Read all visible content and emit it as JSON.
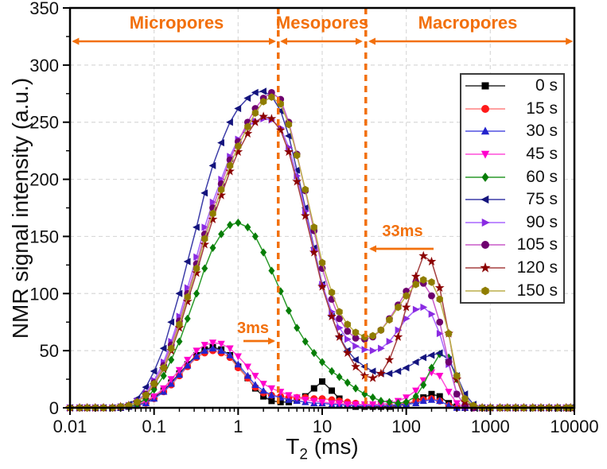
{
  "figure": {
    "y_axis_title": "NMR signal intensity (a.u.)",
    "x_axis_title_base": "T",
    "x_axis_title_sub": "2",
    "x_axis_title_unit": "(ms)"
  },
  "colors": {
    "accent_orange": "#F2700D",
    "axis_black": "#000000",
    "gridline_gray": "#D9D9D9",
    "background": "#FFFFFF"
  },
  "chart_data": {
    "type": "line",
    "title": "",
    "xlabel": "T2 (ms)",
    "ylabel": "NMR signal intensity (a.u.)",
    "xscale": "log",
    "xlim": [
      0.01,
      10000
    ],
    "ylim": [
      0,
      350
    ],
    "x_tick_labels": [
      "0.01",
      "0.1",
      "1",
      "10",
      "100",
      "1000",
      "10000"
    ],
    "y_ticks": [
      0,
      50,
      100,
      150,
      200,
      250,
      300,
      350
    ],
    "y_minor_step": 25,
    "grid": true,
    "legend_position": "upper right",
    "cutoff_lines_ms": [
      3,
      33
    ],
    "annotations": [
      {
        "text": "3ms",
        "t2_ms": 3,
        "arrow_direction": "right"
      },
      {
        "text": "33ms",
        "t2_ms": 33,
        "arrow_direction": "left"
      }
    ],
    "regions": [
      {
        "label": "Micropores",
        "from_ms": 0.011,
        "to_ms": 2.7
      },
      {
        "label": "Mesopores",
        "from_ms": 3.3,
        "to_ms": 29
      },
      {
        "label": "Macropores",
        "from_ms": 37,
        "to_ms": 9200
      }
    ],
    "x": [
      0.01,
      0.013,
      0.016,
      0.02,
      0.025,
      0.032,
      0.04,
      0.05,
      0.063,
      0.08,
      0.1,
      0.13,
      0.16,
      0.2,
      0.25,
      0.32,
      0.4,
      0.5,
      0.63,
      0.8,
      1,
      1.3,
      1.6,
      2,
      2.5,
      3.2,
      4,
      5,
      6.3,
      8,
      10,
      13,
      16,
      20,
      25,
      32,
      40,
      50,
      63,
      80,
      100,
      130,
      160,
      200,
      250,
      320,
      400,
      500,
      630,
      800,
      1000,
      1300,
      1600,
      2000,
      2500,
      3200,
      4000,
      5000,
      6300,
      8000,
      9000
    ],
    "series": [
      {
        "name": "0 s",
        "marker": "square",
        "color": "#000000",
        "line_color": "#2B2B2B",
        "values": [
          0,
          0,
          0,
          0,
          0,
          0,
          0,
          1,
          2,
          5,
          9,
          15,
          22,
          30,
          38,
          46,
          51,
          53,
          51,
          46,
          36,
          26,
          17,
          10,
          6,
          5,
          5,
          7,
          10,
          17,
          23,
          15,
          8,
          3,
          1,
          1,
          1,
          1,
          1,
          2,
          3,
          6,
          9,
          12,
          10,
          4,
          1,
          0,
          0,
          0,
          0,
          0,
          0,
          0,
          0,
          0,
          0,
          0,
          0,
          0,
          0
        ]
      },
      {
        "name": "15 s",
        "marker": "circle",
        "color": "#FF1A1A",
        "line_color": "#FF8080",
        "values": [
          0,
          0,
          0,
          0,
          0,
          0,
          0,
          1,
          2,
          4,
          8,
          14,
          20,
          28,
          36,
          44,
          48,
          50,
          48,
          44,
          35,
          26,
          18,
          13,
          11,
          10,
          9,
          9,
          9,
          8,
          8,
          7,
          6,
          5,
          4,
          2,
          2,
          2,
          2,
          3,
          4,
          6,
          7,
          8,
          6,
          2,
          0,
          0,
          0,
          0,
          0,
          0,
          0,
          0,
          0,
          0,
          0,
          0,
          0,
          0,
          0
        ]
      },
      {
        "name": "30 s",
        "marker": "triangle-up",
        "color": "#2424CC",
        "line_color": "#5050E0",
        "values": [
          0,
          0,
          0,
          0,
          0,
          0,
          0,
          1,
          2,
          4,
          8,
          14,
          21,
          29,
          37,
          45,
          50,
          52,
          50,
          46,
          38,
          28,
          20,
          15,
          11,
          9,
          7,
          6,
          5,
          4,
          4,
          3,
          3,
          2,
          2,
          2,
          2,
          2,
          2,
          3,
          3,
          4,
          6,
          7,
          6,
          2,
          0,
          0,
          0,
          0,
          0,
          0,
          0,
          0,
          0,
          0,
          0,
          0,
          0,
          0,
          0
        ]
      },
      {
        "name": "45 s",
        "marker": "triangle-down",
        "color": "#FF00CC",
        "line_color": "#FF4DD8",
        "values": [
          0,
          0,
          0,
          0,
          0,
          0,
          0,
          1,
          3,
          6,
          10,
          17,
          25,
          33,
          42,
          50,
          55,
          57,
          56,
          52,
          45,
          36,
          28,
          21,
          17,
          14,
          11,
          9,
          7,
          6,
          5,
          4,
          4,
          3,
          3,
          3,
          3,
          3,
          4,
          6,
          9,
          15,
          24,
          31,
          28,
          14,
          4,
          0,
          0,
          0,
          0,
          0,
          0,
          0,
          0,
          0,
          0,
          0,
          0,
          0,
          0
        ]
      },
      {
        "name": "60 s",
        "marker": "diamond",
        "color": "#077D07",
        "line_color": "#2A9A2A",
        "values": [
          0,
          0,
          0,
          0,
          0,
          0,
          0,
          1,
          3,
          8,
          16,
          28,
          42,
          58,
          78,
          100,
          122,
          140,
          152,
          160,
          162,
          158,
          150,
          136,
          120,
          102,
          85,
          70,
          58,
          48,
          40,
          32,
          27,
          22,
          17,
          12,
          9,
          6,
          5,
          4,
          5,
          10,
          20,
          35,
          47,
          44,
          25,
          8,
          1,
          0,
          0,
          0,
          0,
          0,
          0,
          0,
          0,
          0,
          0,
          0,
          0
        ]
      },
      {
        "name": "75 s",
        "marker": "triangle-left",
        "color": "#14147D",
        "line_color": "#3C3CA8",
        "values": [
          0,
          0,
          0,
          0,
          0,
          0,
          1,
          3,
          8,
          18,
          32,
          52,
          75,
          100,
          128,
          158,
          188,
          212,
          232,
          250,
          262,
          271,
          276,
          277,
          273,
          260,
          238,
          208,
          175,
          140,
          108,
          80,
          62,
          50,
          42,
          36,
          32,
          30,
          30,
          32,
          35,
          40,
          44,
          46,
          48,
          42,
          28,
          12,
          3,
          0,
          0,
          0,
          0,
          0,
          0,
          0,
          0,
          0,
          0,
          0,
          0
        ]
      },
      {
        "name": "90 s",
        "marker": "triangle-right",
        "color": "#8A2BE2",
        "line_color": "#A866FF",
        "values": [
          0,
          0,
          0,
          0,
          0,
          0,
          1,
          2,
          6,
          13,
          24,
          40,
          58,
          80,
          105,
          132,
          158,
          180,
          200,
          220,
          235,
          246,
          251,
          253,
          252,
          245,
          228,
          203,
          172,
          138,
          108,
          84,
          70,
          60,
          54,
          51,
          50,
          52,
          58,
          68,
          78,
          86,
          88,
          82,
          65,
          38,
          12,
          2,
          0,
          0,
          0,
          0,
          0,
          0,
          0,
          0,
          0,
          0,
          0,
          0,
          0
        ]
      },
      {
        "name": "105 s",
        "marker": "circle",
        "color": "#6E006E",
        "line_color": "#C85AC8",
        "values": [
          0,
          0,
          0,
          0,
          0,
          0,
          1,
          2,
          5,
          12,
          22,
          37,
          55,
          76,
          100,
          126,
          152,
          175,
          196,
          217,
          233,
          250,
          262,
          271,
          276,
          270,
          250,
          222,
          190,
          155,
          122,
          95,
          78,
          67,
          61,
          60,
          62,
          68,
          78,
          90,
          102,
          110,
          109,
          98,
          75,
          40,
          12,
          2,
          0,
          0,
          0,
          0,
          0,
          0,
          0,
          0,
          0,
          0,
          0,
          0,
          0
        ]
      },
      {
        "name": "120 s",
        "marker": "star",
        "color": "#8B0000",
        "line_color": "#A54040",
        "values": [
          0,
          0,
          0,
          0,
          0,
          0,
          1,
          2,
          5,
          11,
          20,
          34,
          50,
          70,
          93,
          118,
          143,
          165,
          186,
          207,
          224,
          240,
          250,
          255,
          253,
          243,
          224,
          198,
          168,
          136,
          106,
          80,
          62,
          48,
          36,
          28,
          26,
          30,
          42,
          62,
          88,
          115,
          133,
          128,
          105,
          65,
          25,
          5,
          1,
          0,
          0,
          0,
          0,
          0,
          0,
          0,
          0,
          0,
          0,
          0,
          0
        ]
      },
      {
        "name": "150 s",
        "marker": "hexagon",
        "color": "#8F7D00",
        "line_color": "#BCAE4A",
        "values": [
          0,
          0,
          0,
          0,
          0,
          0,
          1,
          2,
          5,
          11,
          21,
          35,
          52,
          73,
          97,
          122,
          148,
          170,
          191,
          212,
          229,
          246,
          258,
          268,
          272,
          266,
          248,
          221,
          191,
          158,
          127,
          101,
          84,
          73,
          66,
          62,
          63,
          68,
          77,
          88,
          98,
          108,
          112,
          110,
          95,
          65,
          28,
          8,
          2,
          0,
          0,
          0,
          0,
          0,
          0,
          0,
          0,
          0,
          0,
          0,
          0
        ]
      }
    ]
  }
}
